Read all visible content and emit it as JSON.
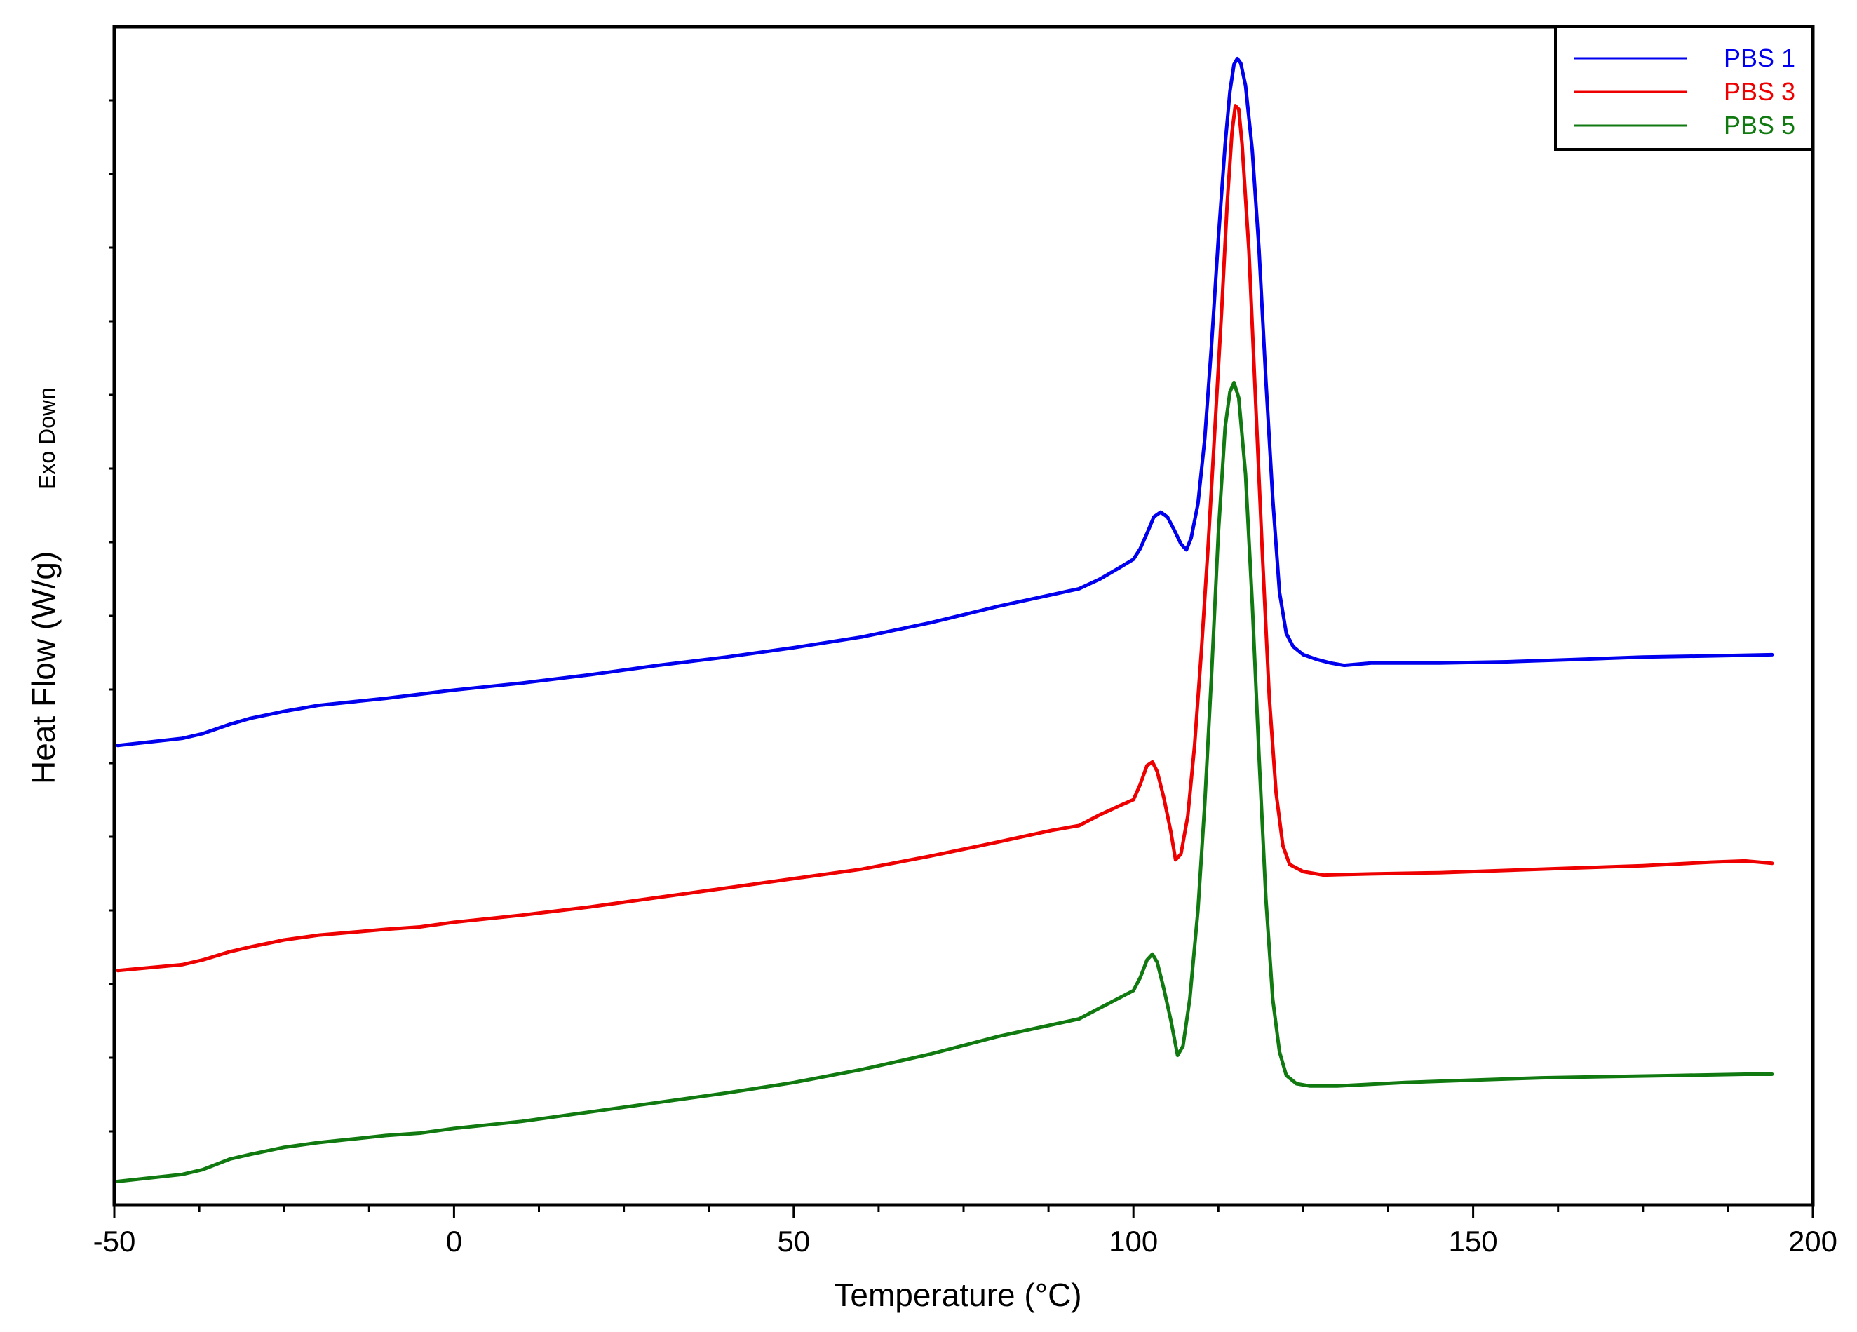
{
  "chart_data": {
    "type": "line",
    "title": "",
    "xlabel": "Temperature (°C)",
    "ylabel": "Heat Flow (W/g)",
    "ylabel_note": "Exo Down",
    "xlim": [
      -50,
      200
    ],
    "ylim": [
      0,
      100
    ],
    "x_ticks": [
      "-50",
      "0",
      "50",
      "100",
      "150",
      "200"
    ],
    "x_tick_values": [
      -50,
      0,
      50,
      100,
      150,
      200
    ],
    "y_tick_labels_shown": false,
    "legend_position": "top-right",
    "series": [
      {
        "name": "PBS 1",
        "color": "#0000ee",
        "points": [
          [
            -49.5,
            39.0
          ],
          [
            -40,
            39.6
          ],
          [
            -37,
            40.0
          ],
          [
            -33,
            40.8
          ],
          [
            -30,
            41.3
          ],
          [
            -25,
            41.9
          ],
          [
            -20,
            42.4
          ],
          [
            -10,
            43.0
          ],
          [
            0,
            43.7
          ],
          [
            10,
            44.3
          ],
          [
            20,
            45.0
          ],
          [
            30,
            45.8
          ],
          [
            40,
            46.5
          ],
          [
            50,
            47.3
          ],
          [
            60,
            48.2
          ],
          [
            70,
            49.4
          ],
          [
            80,
            50.8
          ],
          [
            88,
            51.8
          ],
          [
            92,
            52.3
          ],
          [
            95,
            53.1
          ],
          [
            98,
            54.1
          ],
          [
            100,
            54.8
          ],
          [
            101,
            55.7
          ],
          [
            102,
            57.0
          ],
          [
            103,
            58.4
          ],
          [
            104,
            58.8
          ],
          [
            105,
            58.4
          ],
          [
            106,
            57.3
          ],
          [
            107,
            56.1
          ],
          [
            107.8,
            55.6
          ],
          [
            108.5,
            56.6
          ],
          [
            109.5,
            59.5
          ],
          [
            110.5,
            65.0
          ],
          [
            111.5,
            73.0
          ],
          [
            112.5,
            82.0
          ],
          [
            113.5,
            90.0
          ],
          [
            114.2,
            94.5
          ],
          [
            114.8,
            96.8
          ],
          [
            115.3,
            97.3
          ],
          [
            115.8,
            96.9
          ],
          [
            116.5,
            95.0
          ],
          [
            117.5,
            89.5
          ],
          [
            118.5,
            81.0
          ],
          [
            119.5,
            70.0
          ],
          [
            120.5,
            60.0
          ],
          [
            121.5,
            52.0
          ],
          [
            122.5,
            48.5
          ],
          [
            123.5,
            47.4
          ],
          [
            125,
            46.7
          ],
          [
            127,
            46.3
          ],
          [
            129,
            46.0
          ],
          [
            131,
            45.8
          ],
          [
            135,
            46.0
          ],
          [
            145,
            46.0
          ],
          [
            155,
            46.1
          ],
          [
            165,
            46.3
          ],
          [
            175,
            46.5
          ],
          [
            185,
            46.6
          ],
          [
            194,
            46.7
          ]
        ]
      },
      {
        "name": "PBS 3",
        "color": "#ee0000",
        "points": [
          [
            -49.5,
            19.9
          ],
          [
            -40,
            20.4
          ],
          [
            -37,
            20.8
          ],
          [
            -33,
            21.5
          ],
          [
            -30,
            21.9
          ],
          [
            -25,
            22.5
          ],
          [
            -20,
            22.9
          ],
          [
            -10,
            23.4
          ],
          [
            -5,
            23.6
          ],
          [
            0,
            24.0
          ],
          [
            10,
            24.6
          ],
          [
            20,
            25.3
          ],
          [
            30,
            26.1
          ],
          [
            40,
            26.9
          ],
          [
            50,
            27.7
          ],
          [
            60,
            28.5
          ],
          [
            70,
            29.6
          ],
          [
            80,
            30.8
          ],
          [
            88,
            31.8
          ],
          [
            92,
            32.2
          ],
          [
            95,
            33.1
          ],
          [
            98,
            33.9
          ],
          [
            100,
            34.4
          ],
          [
            101,
            35.7
          ],
          [
            102,
            37.3
          ],
          [
            102.8,
            37.6
          ],
          [
            103.5,
            36.8
          ],
          [
            104.5,
            34.5
          ],
          [
            105.5,
            31.7
          ],
          [
            106.2,
            29.3
          ],
          [
            107,
            29.8
          ],
          [
            108,
            33.0
          ],
          [
            109,
            39.0
          ],
          [
            110,
            47.0
          ],
          [
            111,
            56.0
          ],
          [
            112,
            66.0
          ],
          [
            113,
            76.0
          ],
          [
            113.8,
            85.0
          ],
          [
            114.5,
            91.0
          ],
          [
            115,
            93.3
          ],
          [
            115.5,
            93.0
          ],
          [
            116,
            90.0
          ],
          [
            117,
            81.0
          ],
          [
            118,
            68.0
          ],
          [
            119,
            55.0
          ],
          [
            120,
            43.0
          ],
          [
            121,
            35.0
          ],
          [
            122,
            30.5
          ],
          [
            123,
            28.9
          ],
          [
            125,
            28.3
          ],
          [
            128,
            28.0
          ],
          [
            135,
            28.1
          ],
          [
            145,
            28.2
          ],
          [
            155,
            28.4
          ],
          [
            165,
            28.6
          ],
          [
            175,
            28.8
          ],
          [
            185,
            29.1
          ],
          [
            190,
            29.2
          ],
          [
            194,
            29.0
          ]
        ]
      },
      {
        "name": "PBS 5",
        "color": "#107a10",
        "points": [
          [
            -49.5,
            2.0
          ],
          [
            -40,
            2.6
          ],
          [
            -37,
            3.0
          ],
          [
            -33,
            3.9
          ],
          [
            -30,
            4.3
          ],
          [
            -25,
            4.9
          ],
          [
            -20,
            5.3
          ],
          [
            -10,
            5.9
          ],
          [
            -5,
            6.1
          ],
          [
            0,
            6.5
          ],
          [
            10,
            7.1
          ],
          [
            20,
            7.9
          ],
          [
            30,
            8.7
          ],
          [
            40,
            9.5
          ],
          [
            50,
            10.4
          ],
          [
            60,
            11.5
          ],
          [
            70,
            12.8
          ],
          [
            80,
            14.3
          ],
          [
            88,
            15.3
          ],
          [
            92,
            15.8
          ],
          [
            95,
            16.7
          ],
          [
            98,
            17.6
          ],
          [
            100,
            18.2
          ],
          [
            101,
            19.3
          ],
          [
            102,
            20.8
          ],
          [
            102.8,
            21.3
          ],
          [
            103.5,
            20.6
          ],
          [
            104.5,
            18.3
          ],
          [
            105.5,
            15.7
          ],
          [
            106.5,
            12.7
          ],
          [
            107.3,
            13.5
          ],
          [
            108.3,
            17.5
          ],
          [
            109.5,
            25.0
          ],
          [
            110.5,
            34.0
          ],
          [
            111.5,
            45.0
          ],
          [
            112.5,
            57.0
          ],
          [
            113.5,
            66.0
          ],
          [
            114.2,
            69.0
          ],
          [
            114.8,
            69.8
          ],
          [
            115.5,
            68.5
          ],
          [
            116.5,
            62.0
          ],
          [
            117.5,
            51.0
          ],
          [
            118.5,
            38.0
          ],
          [
            119.5,
            26.0
          ],
          [
            120.5,
            17.5
          ],
          [
            121.5,
            13.0
          ],
          [
            122.5,
            11.0
          ],
          [
            124,
            10.3
          ],
          [
            126,
            10.1
          ],
          [
            130,
            10.1
          ],
          [
            140,
            10.4
          ],
          [
            150,
            10.6
          ],
          [
            160,
            10.8
          ],
          [
            170,
            10.9
          ],
          [
            180,
            11.0
          ],
          [
            190,
            11.1
          ],
          [
            194,
            11.1
          ]
        ]
      }
    ]
  }
}
